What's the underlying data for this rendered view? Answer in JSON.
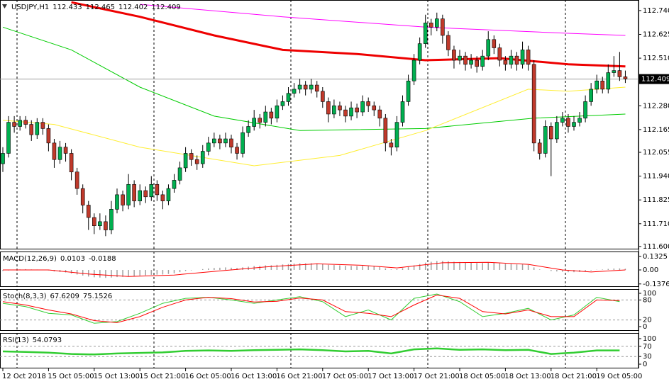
{
  "chart_data": [
    {
      "type": "candlestick",
      "title": "USDJPY,H1",
      "header_values": [
        112.433,
        112.465,
        112.402,
        112.409
      ],
      "up_color": "#00b050",
      "down_color": "#c0392b",
      "last_price": 112.409,
      "ylim": [
        111.586,
        112.791
      ],
      "yticks": [
        {
          "value": 112.74,
          "label": "112.740"
        },
        {
          "value": 112.625,
          "label": "112.625"
        },
        {
          "value": 112.51,
          "label": "112.510"
        },
        {
          "value": 112.28,
          "label": "112.280"
        },
        {
          "value": 112.165,
          "label": "112.165"
        },
        {
          "value": 112.055,
          "label": "112.055"
        },
        {
          "value": 111.94,
          "label": "111.940"
        },
        {
          "value": 111.825,
          "label": "111.825"
        },
        {
          "value": 111.71,
          "label": "111.710"
        },
        {
          "value": 111.6,
          "label": "111.600"
        }
      ],
      "xticks": [
        {
          "value": 0,
          "label": "12 Oct 2018"
        },
        {
          "value": 8,
          "label": "15 Oct 05:00"
        },
        {
          "value": 16,
          "label": "15 Oct 13:00"
        },
        {
          "value": 24,
          "label": "15 Oct 21:00"
        },
        {
          "value": 32,
          "label": "16 Oct 05:00"
        },
        {
          "value": 40,
          "label": "16 Oct 13:00"
        },
        {
          "value": 48,
          "label": "16 Oct 21:00"
        },
        {
          "value": 56,
          "label": "17 Oct 05:00"
        },
        {
          "value": 64,
          "label": "17 Oct 13:00"
        },
        {
          "value": 72,
          "label": "17 Oct 21:00"
        },
        {
          "value": 80,
          "label": "18 Oct 05:00"
        },
        {
          "value": 88,
          "label": "18 Oct 13:00"
        },
        {
          "value": 96,
          "label": "18 Oct 21:00"
        },
        {
          "value": 104,
          "label": "19 Oct 05:00"
        }
      ],
      "candles": [
        [
          112.0,
          112.08,
          111.96,
          112.05
        ],
        [
          112.05,
          112.23,
          112.03,
          112.2
        ],
        [
          112.2,
          112.23,
          112.15,
          112.18
        ],
        [
          112.18,
          112.23,
          112.16,
          112.21
        ],
        [
          112.21,
          112.23,
          112.17,
          112.19
        ],
        [
          112.19,
          112.21,
          112.11,
          112.14
        ],
        [
          112.14,
          112.22,
          112.12,
          112.2
        ],
        [
          112.2,
          112.22,
          112.14,
          112.17
        ],
        [
          112.17,
          112.19,
          112.06,
          112.1
        ],
        [
          112.1,
          112.12,
          111.98,
          112.02
        ],
        [
          112.02,
          112.11,
          112.0,
          112.08
        ],
        [
          112.08,
          112.1,
          112.01,
          112.05
        ],
        [
          112.05,
          112.07,
          111.92,
          111.96
        ],
        [
          111.96,
          111.98,
          111.85,
          111.88
        ],
        [
          111.88,
          111.9,
          111.76,
          111.8
        ],
        [
          111.8,
          111.82,
          111.68,
          111.74
        ],
        [
          111.74,
          111.76,
          111.66,
          111.7
        ],
        [
          111.7,
          111.76,
          111.68,
          111.72
        ],
        [
          111.72,
          111.75,
          111.65,
          111.68
        ],
        [
          111.68,
          111.82,
          111.66,
          111.78
        ],
        [
          111.78,
          111.88,
          111.76,
          111.85
        ],
        [
          111.85,
          111.87,
          111.77,
          111.8
        ],
        [
          111.8,
          111.95,
          111.78,
          111.9
        ],
        [
          111.9,
          111.92,
          111.79,
          111.82
        ],
        [
          111.82,
          111.9,
          111.8,
          111.87
        ],
        [
          111.87,
          111.89,
          111.81,
          111.84
        ],
        [
          111.84,
          111.94,
          111.82,
          111.9
        ],
        [
          111.9,
          111.92,
          111.82,
          111.85
        ],
        [
          111.85,
          111.87,
          111.78,
          111.82
        ],
        [
          111.82,
          111.9,
          111.8,
          111.88
        ],
        [
          111.88,
          111.95,
          111.86,
          111.92
        ],
        [
          111.92,
          112.01,
          111.9,
          111.98
        ],
        [
          111.98,
          112.08,
          111.96,
          112.05
        ],
        [
          112.05,
          112.07,
          111.99,
          112.02
        ],
        [
          112.02,
          112.04,
          111.97,
          112.0
        ],
        [
          112.0,
          112.09,
          111.98,
          112.06
        ],
        [
          112.06,
          112.13,
          112.04,
          112.1
        ],
        [
          112.1,
          112.15,
          112.08,
          112.12
        ],
        [
          112.12,
          112.14,
          112.07,
          112.1
        ],
        [
          112.1,
          112.15,
          112.08,
          112.12
        ],
        [
          112.12,
          112.14,
          112.05,
          112.08
        ],
        [
          112.08,
          112.1,
          112.02,
          112.05
        ],
        [
          112.05,
          112.18,
          112.03,
          112.15
        ],
        [
          112.15,
          112.21,
          112.13,
          112.18
        ],
        [
          112.18,
          112.26,
          112.16,
          112.22
        ],
        [
          112.22,
          112.24,
          112.17,
          112.2
        ],
        [
          112.2,
          112.28,
          112.18,
          112.25
        ],
        [
          112.25,
          112.27,
          112.19,
          112.22
        ],
        [
          112.22,
          112.31,
          112.2,
          112.28
        ],
        [
          112.28,
          112.33,
          112.26,
          112.3
        ],
        [
          112.3,
          112.37,
          112.28,
          112.34
        ],
        [
          112.34,
          112.39,
          112.32,
          112.36
        ],
        [
          112.36,
          112.41,
          112.34,
          112.38
        ],
        [
          112.38,
          112.4,
          112.33,
          112.36
        ],
        [
          112.36,
          112.41,
          112.34,
          112.38
        ],
        [
          112.38,
          112.4,
          112.32,
          112.35
        ],
        [
          112.35,
          112.37,
          112.27,
          112.3
        ],
        [
          112.3,
          112.32,
          112.2,
          112.24
        ],
        [
          112.24,
          112.31,
          112.22,
          112.28
        ],
        [
          112.28,
          112.3,
          112.23,
          112.26
        ],
        [
          112.26,
          112.28,
          112.2,
          112.23
        ],
        [
          112.23,
          112.3,
          112.21,
          112.27
        ],
        [
          112.27,
          112.29,
          112.22,
          112.25
        ],
        [
          112.25,
          112.33,
          112.23,
          112.3
        ],
        [
          112.3,
          112.32,
          112.25,
          112.28
        ],
        [
          112.28,
          112.3,
          112.23,
          112.26
        ],
        [
          112.26,
          112.28,
          112.18,
          112.22
        ],
        [
          112.22,
          112.24,
          112.06,
          112.1
        ],
        [
          112.1,
          112.12,
          112.04,
          112.08
        ],
        [
          112.08,
          112.23,
          112.06,
          112.2
        ],
        [
          112.2,
          112.33,
          112.18,
          112.3
        ],
        [
          112.3,
          112.43,
          112.28,
          112.4
        ],
        [
          112.4,
          112.53,
          112.38,
          112.5
        ],
        [
          112.5,
          112.61,
          112.48,
          112.58
        ],
        [
          112.58,
          112.72,
          112.56,
          112.68
        ],
        [
          112.68,
          112.7,
          112.62,
          112.66
        ],
        [
          112.66,
          112.73,
          112.64,
          112.7
        ],
        [
          112.7,
          112.72,
          112.58,
          112.62
        ],
        [
          112.62,
          112.64,
          112.52,
          112.55
        ],
        [
          112.55,
          112.57,
          112.46,
          112.5
        ],
        [
          112.5,
          112.55,
          112.48,
          112.52
        ],
        [
          112.52,
          112.54,
          112.45,
          112.48
        ],
        [
          112.48,
          112.53,
          112.46,
          112.5
        ],
        [
          112.5,
          112.52,
          112.44,
          112.47
        ],
        [
          112.47,
          112.55,
          112.45,
          112.52
        ],
        [
          112.52,
          112.64,
          112.5,
          112.6
        ],
        [
          112.6,
          112.62,
          112.53,
          112.56
        ],
        [
          112.56,
          112.58,
          112.47,
          112.5
        ],
        [
          112.5,
          112.52,
          112.45,
          112.48
        ],
        [
          112.48,
          112.55,
          112.46,
          112.52
        ],
        [
          112.52,
          112.54,
          112.45,
          112.48
        ],
        [
          112.48,
          112.59,
          112.46,
          112.55
        ],
        [
          112.55,
          112.57,
          112.45,
          112.48
        ],
        [
          112.48,
          112.5,
          112.06,
          112.1
        ],
        [
          112.1,
          112.12,
          112.02,
          112.05
        ],
        [
          112.05,
          112.21,
          112.03,
          112.18
        ],
        [
          112.18,
          112.2,
          111.94,
          112.12
        ],
        [
          112.12,
          112.23,
          112.1,
          112.2
        ],
        [
          112.2,
          112.25,
          112.18,
          112.22
        ],
        [
          112.22,
          112.24,
          112.15,
          112.18
        ],
        [
          112.18,
          112.23,
          112.16,
          112.2
        ],
        [
          112.2,
          112.25,
          112.18,
          112.22
        ],
        [
          112.22,
          112.33,
          112.2,
          112.3
        ],
        [
          112.3,
          112.39,
          112.28,
          112.36
        ],
        [
          112.36,
          112.43,
          112.34,
          112.4
        ],
        [
          112.4,
          112.42,
          112.34,
          112.36
        ],
        [
          112.36,
          112.48,
          112.34,
          112.44
        ],
        [
          112.44,
          112.52,
          112.42,
          112.45
        ],
        [
          112.45,
          112.54,
          112.4,
          112.42
        ],
        [
          112.42,
          112.45,
          112.39,
          112.41
        ]
      ],
      "lines": [
        {
          "color": "#ff00ff",
          "width": 1,
          "x": [
            24,
            49,
            74,
            99,
            109
          ],
          "values": [
            112.77,
            112.71,
            112.66,
            112.63,
            112.62
          ]
        },
        {
          "color": "#00cc00",
          "width": 1,
          "x": [
            0,
            12,
            24,
            37,
            52,
            74,
            93,
            109
          ],
          "values": [
            112.66,
            112.55,
            112.37,
            112.23,
            112.16,
            112.17,
            112.22,
            112.24
          ]
        },
        {
          "color": "#ffee33",
          "width": 1,
          "x": [
            0,
            9,
            24,
            44,
            59,
            74,
            92,
            99,
            109
          ],
          "values": [
            112.21,
            112.19,
            112.08,
            111.99,
            112.04,
            112.16,
            112.36,
            112.35,
            112.37
          ]
        },
        {
          "color": "#ee0000",
          "width": 3,
          "x": [
            12,
            24,
            37,
            49,
            62,
            74,
            87,
            99,
            109
          ],
          "values": [
            112.78,
            112.71,
            112.62,
            112.55,
            112.53,
            112.5,
            112.51,
            112.48,
            112.47
          ]
        }
      ]
    },
    {
      "type": "macd",
      "title": "MACD(12,26,9)",
      "header_values": [
        0.0103,
        -0.0188
      ],
      "color": "#a0a0a0",
      "ylim": [
        -0.167,
        0.181
      ],
      "yticks": [
        0.1325,
        {
          "value": 0,
          "label": "0.00"
        },
        -0.1376
      ],
      "values": [
        -0.01,
        -0.005,
        0.0,
        0.005,
        0.008,
        0.005,
        0.004,
        0.002,
        -0.005,
        -0.015,
        -0.02,
        -0.025,
        -0.035,
        -0.045,
        -0.055,
        -0.065,
        -0.072,
        -0.075,
        -0.078,
        -0.075,
        -0.07,
        -0.068,
        -0.062,
        -0.06,
        -0.055,
        -0.052,
        -0.048,
        -0.046,
        -0.045,
        -0.04,
        -0.033,
        -0.022,
        -0.01,
        -0.004,
        0.0,
        0.008,
        0.015,
        0.02,
        0.022,
        0.025,
        0.022,
        0.02,
        0.026,
        0.032,
        0.038,
        0.04,
        0.045,
        0.046,
        0.05,
        0.054,
        0.058,
        0.062,
        0.065,
        0.065,
        0.066,
        0.064,
        0.058,
        0.05,
        0.048,
        0.045,
        0.04,
        0.04,
        0.038,
        0.04,
        0.038,
        0.035,
        0.03,
        0.015,
        0.005,
        0.008,
        0.018,
        0.03,
        0.045,
        0.058,
        0.072,
        0.08,
        0.088,
        0.088,
        0.085,
        0.08,
        0.078,
        0.074,
        0.072,
        0.068,
        0.068,
        0.072,
        0.07,
        0.065,
        0.06,
        0.058,
        0.054,
        0.055,
        0.05,
        0.025,
        0.005,
        0.0,
        -0.01,
        -0.015,
        -0.018,
        -0.022,
        -0.022,
        -0.02,
        -0.012,
        -0.005,
        0.002,
        0.004,
        0.01,
        0.014,
        0.015,
        0.012
      ],
      "signal": {
        "color": "#ff0000",
        "x": [
          0,
          8,
          15,
          22,
          30,
          38,
          46,
          55,
          63,
          69,
          77,
          85,
          92,
          98,
          103,
          109
        ],
        "values": [
          0,
          0,
          -0.04,
          -0.065,
          -0.05,
          -0.01,
          0.03,
          0.06,
          0.045,
          0.02,
          0.07,
          0.075,
          0.055,
          0,
          -0.02,
          0
        ]
      }
    },
    {
      "type": "line",
      "title": "Stoch(8,3,3)",
      "header_values": [
        67.6209,
        75.1526
      ],
      "ylim": [
        -12.8,
        112.8
      ],
      "yticks": [
        100,
        80,
        20,
        0
      ],
      "x": [
        0,
        4,
        8,
        12,
        16,
        20,
        24,
        28,
        32,
        36,
        40,
        44,
        48,
        52,
        56,
        60,
        64,
        68,
        72,
        76,
        80,
        84,
        88,
        92,
        96,
        100,
        104,
        108
      ],
      "series": [
        {
          "color": "#32cd32",
          "width": 1,
          "values": [
            70,
            60,
            40,
            35,
            10,
            15,
            40,
            70,
            85,
            88,
            80,
            70,
            80,
            90,
            75,
            30,
            50,
            20,
            85,
            98,
            75,
            30,
            40,
            55,
            20,
            35,
            88,
            75
          ]
        },
        {
          "color": "#ff0000",
          "width": 1,
          "values": [
            75,
            65,
            50,
            38,
            18,
            12,
            30,
            58,
            80,
            88,
            84,
            74,
            76,
            86,
            80,
            45,
            40,
            30,
            65,
            95,
            85,
            45,
            38,
            50,
            30,
            30,
            80,
            78
          ]
        }
      ]
    },
    {
      "type": "line",
      "title": "RSI(13)",
      "header_values": [
        54.0793
      ],
      "ylim": [
        -16.7,
        122.2
      ],
      "yticks": [
        100,
        70,
        30,
        0
      ],
      "x": [
        0,
        4,
        8,
        12,
        16,
        20,
        24,
        28,
        32,
        36,
        40,
        44,
        48,
        52,
        56,
        60,
        64,
        68,
        72,
        76,
        80,
        84,
        88,
        92,
        96,
        100,
        104,
        108
      ],
      "series": [
        {
          "color": "#32cd32",
          "width": 2.5,
          "values": [
            50,
            48,
            45,
            40,
            38,
            42,
            44,
            46,
            52,
            54,
            52,
            55,
            56,
            58,
            55,
            50,
            52,
            42,
            58,
            62,
            56,
            58,
            55,
            56,
            40,
            45,
            54,
            54
          ]
        }
      ]
    }
  ]
}
